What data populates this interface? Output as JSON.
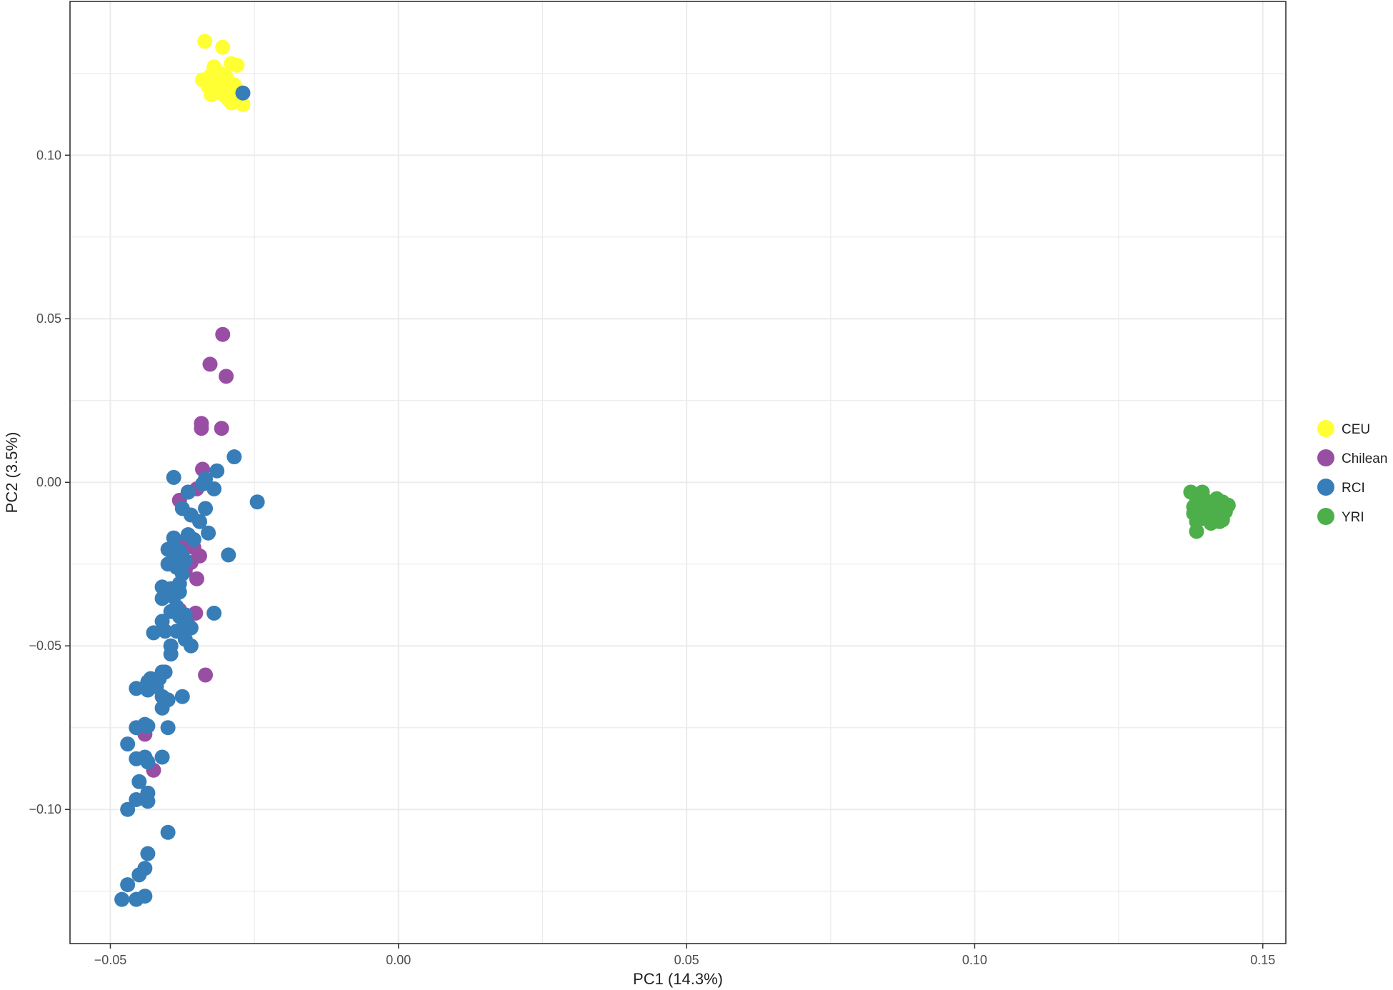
{
  "chart_data": {
    "type": "scatter",
    "title": "",
    "xlabel": "PC1 (14.3%)",
    "ylabel": "PC2 (3.5%)",
    "xlim": [
      -0.057,
      0.154
    ],
    "ylim": [
      -0.141,
      0.147
    ],
    "x_ticks": [
      -0.05,
      0.0,
      0.05,
      0.1,
      0.15
    ],
    "x_tick_labels": [
      "−0.05",
      "0.00",
      "0.05",
      "0.10",
      "0.15"
    ],
    "y_ticks": [
      -0.1,
      -0.05,
      0.0,
      0.05,
      0.1
    ],
    "y_tick_labels": [
      "−0.10",
      "−0.05",
      "0.00",
      "0.05",
      "0.10"
    ],
    "grid": true,
    "legend_position": "right",
    "series": [
      {
        "name": "CEU",
        "color": "#FFFF33",
        "points": [
          [
            -0.0336,
            0.1348
          ],
          [
            -0.0305,
            0.133
          ],
          [
            -0.029,
            0.128
          ],
          [
            -0.032,
            0.127
          ],
          [
            -0.028,
            0.1275
          ],
          [
            -0.031,
            0.125
          ],
          [
            -0.0325,
            0.1245
          ],
          [
            -0.03,
            0.124
          ],
          [
            -0.034,
            0.123
          ],
          [
            -0.0295,
            0.1225
          ],
          [
            -0.0315,
            0.122
          ],
          [
            -0.0285,
            0.1215
          ],
          [
            -0.033,
            0.121
          ],
          [
            -0.03,
            0.1205
          ],
          [
            -0.032,
            0.1195
          ],
          [
            -0.031,
            0.119
          ],
          [
            -0.028,
            0.12
          ],
          [
            -0.0325,
            0.1185
          ],
          [
            -0.03,
            0.118
          ],
          [
            -0.0295,
            0.117
          ],
          [
            -0.029,
            0.116
          ],
          [
            -0.027,
            0.1155
          ]
        ]
      },
      {
        "name": "Chilean",
        "color": "#984EA3",
        "points": [
          [
            -0.0305,
            0.0452
          ],
          [
            -0.0327,
            0.0361
          ],
          [
            -0.0299,
            0.0324
          ],
          [
            -0.0342,
            0.018
          ],
          [
            -0.0342,
            0.0165
          ],
          [
            -0.0307,
            0.0165
          ],
          [
            -0.034,
            0.004
          ],
          [
            -0.038,
            -0.0055
          ],
          [
            -0.0365,
            -0.003
          ],
          [
            -0.035,
            -0.002
          ],
          [
            -0.037,
            -0.018
          ],
          [
            -0.036,
            -0.019
          ],
          [
            -0.0355,
            -0.02
          ],
          [
            -0.0345,
            -0.0225
          ],
          [
            -0.038,
            -0.023
          ],
          [
            -0.036,
            -0.0245
          ],
          [
            -0.037,
            -0.027
          ],
          [
            -0.035,
            -0.0295
          ],
          [
            -0.038,
            -0.039
          ],
          [
            -0.0352,
            -0.04
          ],
          [
            -0.0335,
            -0.0589
          ],
          [
            -0.044,
            -0.077
          ],
          [
            -0.0425,
            -0.088
          ]
        ]
      },
      {
        "name": "RCI",
        "color": "#377EB8",
        "points": [
          [
            -0.027,
            0.119
          ],
          [
            -0.0285,
            0.0078
          ],
          [
            -0.039,
            0.0015
          ],
          [
            -0.0335,
            0.001
          ],
          [
            -0.034,
            -0.0005
          ],
          [
            -0.0315,
            0.0035
          ],
          [
            -0.032,
            -0.002
          ],
          [
            -0.0365,
            -0.003
          ],
          [
            -0.0245,
            -0.006
          ],
          [
            -0.0375,
            -0.008
          ],
          [
            -0.0335,
            -0.008
          ],
          [
            -0.036,
            -0.01
          ],
          [
            -0.0345,
            -0.012
          ],
          [
            -0.033,
            -0.0155
          ],
          [
            -0.0365,
            -0.016
          ],
          [
            -0.039,
            -0.017
          ],
          [
            -0.0355,
            -0.0175
          ],
          [
            -0.038,
            -0.021
          ],
          [
            -0.04,
            -0.0205
          ],
          [
            -0.0375,
            -0.0225
          ],
          [
            -0.0295,
            -0.0222
          ],
          [
            -0.039,
            -0.023
          ],
          [
            -0.037,
            -0.024
          ],
          [
            -0.04,
            -0.025
          ],
          [
            -0.0385,
            -0.026
          ],
          [
            -0.0375,
            -0.028
          ],
          [
            -0.038,
            -0.031
          ],
          [
            -0.041,
            -0.032
          ],
          [
            -0.0395,
            -0.0325
          ],
          [
            -0.038,
            -0.0335
          ],
          [
            -0.039,
            -0.035
          ],
          [
            -0.041,
            -0.0355
          ],
          [
            -0.0385,
            -0.038
          ],
          [
            -0.0395,
            -0.0395
          ],
          [
            -0.037,
            -0.0405
          ],
          [
            -0.038,
            -0.041
          ],
          [
            -0.032,
            -0.04
          ],
          [
            -0.041,
            -0.0425
          ],
          [
            -0.0365,
            -0.0435
          ],
          [
            -0.0375,
            -0.045
          ],
          [
            -0.036,
            -0.0445
          ],
          [
            -0.0385,
            -0.0455
          ],
          [
            -0.0425,
            -0.046
          ],
          [
            -0.0405,
            -0.0455
          ],
          [
            -0.037,
            -0.048
          ],
          [
            -0.036,
            -0.05
          ],
          [
            -0.0395,
            -0.05
          ],
          [
            -0.0395,
            -0.0525
          ],
          [
            -0.0405,
            -0.058
          ],
          [
            -0.041,
            -0.058
          ],
          [
            -0.0415,
            -0.06
          ],
          [
            -0.043,
            -0.06
          ],
          [
            -0.0435,
            -0.061
          ],
          [
            -0.042,
            -0.0625
          ],
          [
            -0.0455,
            -0.063
          ],
          [
            -0.0435,
            -0.0635
          ],
          [
            -0.0375,
            -0.0655
          ],
          [
            -0.041,
            -0.0655
          ],
          [
            -0.04,
            -0.0665
          ],
          [
            -0.041,
            -0.069
          ],
          [
            -0.0455,
            -0.075
          ],
          [
            -0.044,
            -0.074
          ],
          [
            -0.0435,
            -0.0745
          ],
          [
            -0.04,
            -0.075
          ],
          [
            -0.047,
            -0.08
          ],
          [
            -0.0455,
            -0.0845
          ],
          [
            -0.044,
            -0.084
          ],
          [
            -0.041,
            -0.084
          ],
          [
            -0.0435,
            -0.0855
          ],
          [
            -0.045,
            -0.0915
          ],
          [
            -0.0435,
            -0.095
          ],
          [
            -0.0455,
            -0.097
          ],
          [
            -0.0435,
            -0.0975
          ],
          [
            -0.047,
            -0.1
          ],
          [
            -0.04,
            -0.107
          ],
          [
            -0.0435,
            -0.1135
          ],
          [
            -0.044,
            -0.118
          ],
          [
            -0.045,
            -0.12
          ],
          [
            -0.047,
            -0.123
          ],
          [
            -0.044,
            -0.1265
          ],
          [
            -0.0455,
            -0.1275
          ],
          [
            -0.048,
            -0.1275
          ]
        ]
      },
      {
        "name": "YRI",
        "color": "#4DAF4A",
        "points": [
          [
            0.1375,
            -0.003
          ],
          [
            0.1395,
            -0.003
          ],
          [
            0.142,
            -0.005
          ],
          [
            0.14,
            -0.0055
          ],
          [
            0.1385,
            -0.006
          ],
          [
            0.143,
            -0.006
          ],
          [
            0.141,
            -0.0065
          ],
          [
            0.1395,
            -0.007
          ],
          [
            0.144,
            -0.007
          ],
          [
            0.138,
            -0.0075
          ],
          [
            0.1415,
            -0.0075
          ],
          [
            0.14,
            -0.008
          ],
          [
            0.1425,
            -0.0085
          ],
          [
            0.139,
            -0.009
          ],
          [
            0.141,
            -0.009
          ],
          [
            0.1435,
            -0.009
          ],
          [
            0.138,
            -0.0095
          ],
          [
            0.14,
            -0.01
          ],
          [
            0.142,
            -0.01
          ],
          [
            0.1395,
            -0.011
          ],
          [
            0.1415,
            -0.011
          ],
          [
            0.143,
            -0.0115
          ],
          [
            0.1385,
            -0.012
          ],
          [
            0.141,
            -0.0125
          ],
          [
            0.1425,
            -0.012
          ],
          [
            0.1385,
            -0.015
          ]
        ]
      }
    ]
  }
}
